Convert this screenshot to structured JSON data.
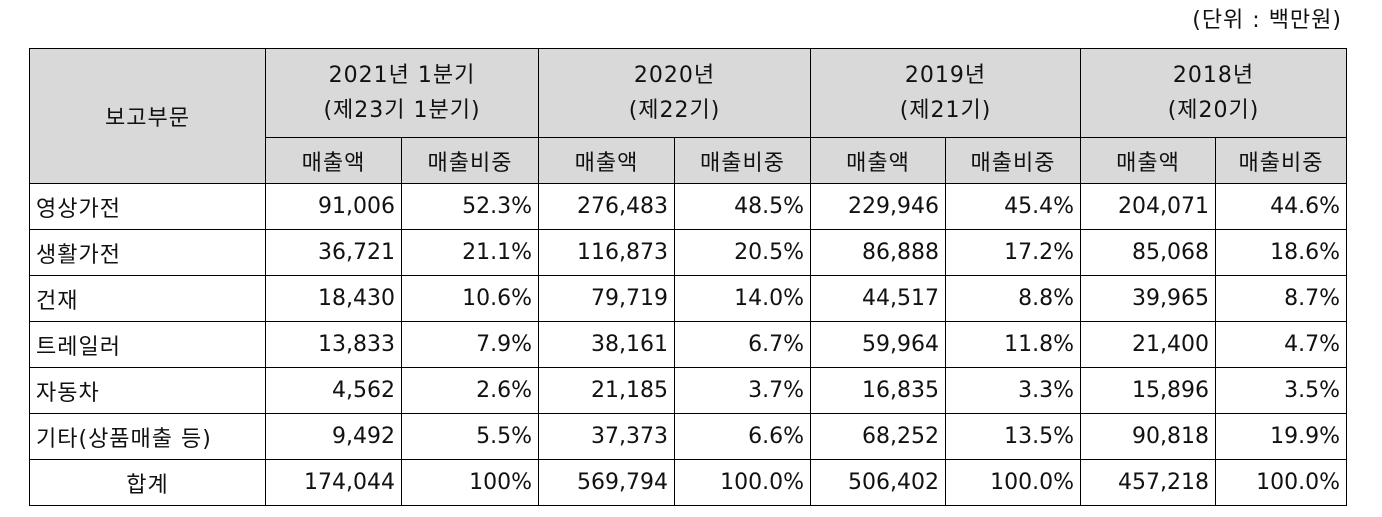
{
  "unit_note": "(단위 : 백만원)",
  "table": {
    "segment_header": "보고부문",
    "periods": [
      {
        "year": "2021년 1분기",
        "term": "(제23기 1분기)"
      },
      {
        "year": "2020년",
        "term": "(제22기)"
      },
      {
        "year": "2019년",
        "term": "(제21기)"
      },
      {
        "year": "2018년",
        "term": "(제20기)"
      }
    ],
    "sub_headers": [
      "매출액",
      "매출비중",
      "매출액",
      "매출비중",
      "매출액",
      "매출비중",
      "매출액",
      "매출비중"
    ],
    "rows": [
      {
        "label": "영상가전",
        "cells": [
          "91,006",
          "52.3%",
          "276,483",
          "48.5%",
          "229,946",
          "45.4%",
          "204,071",
          "44.6%"
        ]
      },
      {
        "label": "생활가전",
        "cells": [
          "36,721",
          "21.1%",
          "116,873",
          "20.5%",
          "86,888",
          "17.2%",
          "85,068",
          "18.6%"
        ]
      },
      {
        "label": "건재",
        "cells": [
          "18,430",
          "10.6%",
          "79,719",
          "14.0%",
          "44,517",
          "8.8%",
          "39,965",
          "8.7%"
        ]
      },
      {
        "label": "트레일러",
        "cells": [
          "13,833",
          "7.9%",
          "38,161",
          "6.7%",
          "59,964",
          "11.8%",
          "21,400",
          "4.7%"
        ]
      },
      {
        "label": "자동차",
        "cells": [
          "4,562",
          "2.6%",
          "21,185",
          "3.7%",
          "16,835",
          "3.3%",
          "15,896",
          "3.5%"
        ]
      },
      {
        "label": "기타(상품매출 등)",
        "cells": [
          "9,492",
          "5.5%",
          "37,373",
          "6.6%",
          "68,252",
          "13.5%",
          "90,818",
          "19.9%"
        ]
      }
    ],
    "total": {
      "label": "합계",
      "cells": [
        "174,044",
        "100%",
        "569,794",
        "100.0%",
        "506,402",
        "100.0%",
        "457,218",
        "100.0%"
      ]
    }
  }
}
